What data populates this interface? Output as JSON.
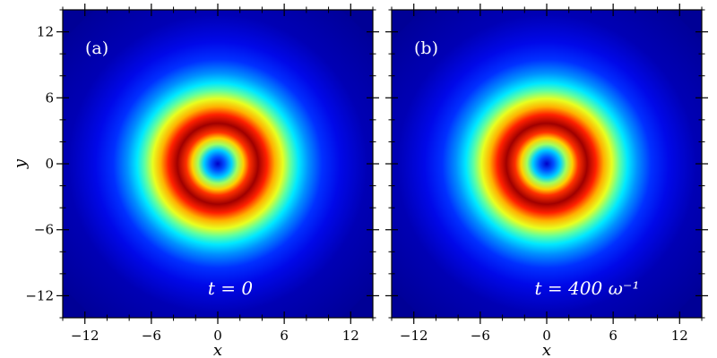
{
  "chart_data": [
    {
      "type": "heatmap",
      "panel_label": "(a)",
      "annotation": "t = 0",
      "xlabel": "x",
      "ylabel": "y",
      "xlim": [
        -14,
        14
      ],
      "ylim": [
        -14,
        14
      ],
      "xticks": [
        -12,
        -6,
        0,
        6,
        12
      ],
      "yticks": [
        -12,
        -6,
        0,
        6,
        12
      ],
      "xtick_labels": [
        "−12",
        "−6",
        "0",
        "6",
        "12"
      ],
      "ytick_labels": [
        "−12",
        "−6",
        "0",
        "6",
        "12"
      ],
      "colormap": "jet",
      "ring": {
        "center": [
          0,
          0
        ],
        "peak_radius": 2.6,
        "core_radius": 0.6,
        "outer_extent": 8.5
      }
    },
    {
      "type": "heatmap",
      "panel_label": "(b)",
      "annotation": "t = 400 ω⁻¹",
      "xlabel": "x",
      "ylabel": "",
      "xlim": [
        -14,
        14
      ],
      "ylim": [
        -14,
        14
      ],
      "xticks": [
        -12,
        -6,
        0,
        6,
        12
      ],
      "yticks": [
        -12,
        -6,
        0,
        6,
        12
      ],
      "xtick_labels": [
        "−12",
        "−6",
        "0",
        "6",
        "12"
      ],
      "ytick_labels": [],
      "colormap": "jet",
      "ring": {
        "center": [
          0,
          0
        ],
        "peak_radius": 2.6,
        "core_radius": 0.6,
        "outer_extent": 8.5
      }
    }
  ]
}
